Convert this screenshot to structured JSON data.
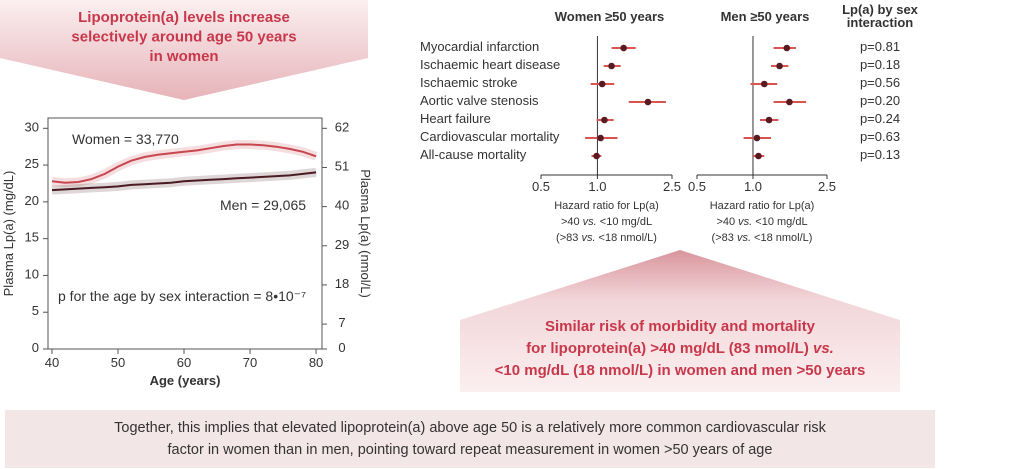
{
  "callouts": {
    "left": [
      "Lipoprotein(a) levels increase",
      "selectively around age 50 years",
      "in women"
    ],
    "right": [
      "Similar risk of morbidity and mortality",
      "for lipoprotein(a) >40 mg/dL (83 nmol/L) vs.",
      "<10 mg/dL (18 nmol/L) in women and men >50 years"
    ]
  },
  "footer": [
    "Together, this implies that elevated lipoprotein(a) above age 50 is a relatively more common cardiovascular risk",
    "factor in women than in men, pointing toward repeat measurement in women >50 years of age"
  ],
  "chart_data": [
    {
      "type": "line",
      "x": [
        40,
        42,
        44,
        46,
        48,
        50,
        52,
        54,
        56,
        58,
        60,
        62,
        64,
        66,
        68,
        70,
        72,
        74,
        76,
        78,
        80
      ],
      "series": [
        {
          "name": "Women = 33,770",
          "color": "#c8464f",
          "values": [
            22.8,
            22.6,
            22.7,
            23.1,
            23.8,
            24.8,
            25.6,
            26.1,
            26.4,
            26.6,
            26.8,
            27.0,
            27.3,
            27.6,
            27.8,
            27.8,
            27.7,
            27.5,
            27.2,
            26.8,
            26.2
          ]
        },
        {
          "name": "Men = 29,065",
          "color": "#4a1c22",
          "values": [
            21.6,
            21.7,
            21.8,
            21.9,
            22.0,
            22.1,
            22.3,
            22.4,
            22.5,
            22.6,
            22.8,
            22.9,
            23.0,
            23.1,
            23.2,
            23.3,
            23.4,
            23.5,
            23.6,
            23.8,
            24.0
          ]
        }
      ],
      "annotations": [
        "p for the age by sex interaction = 8•10⁻⁷"
      ],
      "xlabel": "Age (years)",
      "ylabel": "Plasma Lp(a) (mg/dL)",
      "y2label": "Plasma Lp(a) (nmol/L)",
      "xlim": [
        39.4,
        80.9
      ],
      "xticks": [
        40,
        50,
        60,
        70,
        80
      ],
      "ylim": [
        0,
        31.4
      ],
      "yticks": [
        0,
        5,
        10,
        15,
        20,
        25,
        30
      ],
      "y2lim": [
        0,
        64.9
      ],
      "y2ticks": [
        0,
        7,
        18,
        29,
        40,
        51,
        62
      ]
    },
    {
      "type": "forest",
      "categories": [
        "Myocardial infarction",
        "Ischaemic heart disease",
        "Ischaemic stroke",
        "Aortic valve stenosis",
        "Heart failure",
        "Cardiovascular mortality",
        "All-cause mortality"
      ],
      "xscale": "log",
      "xlim": [
        0.5,
        2.5
      ],
      "xticks": [
        0.5,
        {
          "value": 1,
          "label": "1.0"
        },
        2.5
      ],
      "xlabel": [
        "Hazard ratio for Lp(a)",
        ">40 vs. <10 mg/dL",
        "(>83 vs. <18 nmol/L)"
      ],
      "series": [
        {
          "name": "Women ≥50 years",
          "color": "#d9534f",
          "marker_color": "#5a1a22",
          "values": [
            1.38,
            1.19,
            1.06,
            1.86,
            1.09,
            1.04,
            0.99
          ],
          "lower": [
            1.19,
            1.08,
            0.92,
            1.47,
            0.99,
            0.86,
            0.93
          ],
          "upper": [
            1.6,
            1.33,
            1.23,
            2.32,
            1.22,
            1.28,
            1.05
          ]
        },
        {
          "name": "Men ≥50 years",
          "color": "#d9534f",
          "marker_color": "#5a1a22",
          "values": [
            1.52,
            1.39,
            1.15,
            1.57,
            1.22,
            1.05,
            1.07
          ],
          "lower": [
            1.29,
            1.25,
            0.97,
            1.29,
            1.09,
            0.89,
            1.0
          ],
          "upper": [
            1.7,
            1.55,
            1.35,
            1.93,
            1.37,
            1.25,
            1.15
          ]
        }
      ],
      "interaction_title": [
        "Lp(a) by sex",
        "interaction"
      ],
      "interaction_p": [
        "p=0.81",
        "p=0.18",
        "p=0.56",
        "p=0.20",
        "p=0.24",
        "p=0.63",
        "p=0.13"
      ]
    }
  ]
}
